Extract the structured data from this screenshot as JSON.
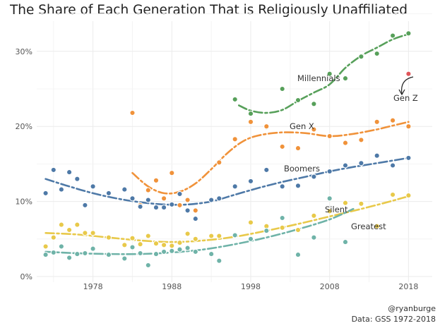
{
  "header": {
    "title": "The Share of Each Generation That is Religiously Unaffiliated"
  },
  "caption": {
    "handle": "@ryanburge",
    "source": "Data: GSS 1972-2018"
  },
  "chart_data": {
    "type": "scatter",
    "title": "The Share of Each Generation That is Religiously Unaffiliated",
    "xlabel": "",
    "ylabel": "",
    "xlim": [
      1971.5,
      2020
    ],
    "ylim": [
      0,
      32.5
    ],
    "x_ticks": [
      1978,
      1988,
      1998,
      2008,
      2018
    ],
    "x_tick_labels": [
      "1978",
      "1988",
      "1998",
      "2008",
      "2018"
    ],
    "y_ticks": [
      0,
      10,
      20,
      30
    ],
    "y_tick_labels": [
      "0%",
      "10%",
      "20%",
      "30%"
    ],
    "grid": true,
    "legend": "none (series labeled directly on chart)",
    "trend_lines": "dash-dot smoothed trend per generation",
    "annotation": {
      "text": "Gen Z",
      "arrow_to": [
        2018,
        27.0
      ]
    },
    "series": [
      {
        "name": "Millennials",
        "color": "#57a05a",
        "points": [
          [
            1996,
            23.6
          ],
          [
            1998,
            21.7
          ],
          [
            2000,
            19.9
          ],
          [
            2002,
            25.0
          ],
          [
            2004,
            23.5
          ],
          [
            2006,
            23.0
          ],
          [
            2008,
            27.0
          ],
          [
            2010,
            26.4
          ],
          [
            2012,
            29.3
          ],
          [
            2014,
            29.7
          ],
          [
            2016,
            32.1
          ],
          [
            2018,
            32.4
          ]
        ],
        "trend": [
          [
            1996.5,
            22.8
          ],
          [
            1998,
            22.1
          ],
          [
            2000,
            21.8
          ],
          [
            2002,
            22.2
          ],
          [
            2004,
            23.4
          ],
          [
            2006,
            24.5
          ],
          [
            2008,
            25.6
          ],
          [
            2010,
            27.8
          ],
          [
            2012,
            29.4
          ],
          [
            2014,
            30.5
          ],
          [
            2016,
            31.6
          ],
          [
            2018,
            32.3
          ]
        ]
      },
      {
        "name": "Gen X",
        "color": "#f0923a",
        "points": [
          [
            1983,
            21.8
          ],
          [
            1984,
            9.5
          ],
          [
            1985,
            11.5
          ],
          [
            1986,
            12.8
          ],
          [
            1987,
            10.4
          ],
          [
            1988,
            13.8
          ],
          [
            1989,
            9.5
          ],
          [
            1990,
            10.2
          ],
          [
            1991,
            8.8
          ],
          [
            1993,
            10.3
          ],
          [
            1994,
            15.2
          ],
          [
            1996,
            18.3
          ],
          [
            1998,
            20.6
          ],
          [
            2000,
            20.0
          ],
          [
            2002,
            17.3
          ],
          [
            2004,
            17.1
          ],
          [
            2006,
            19.6
          ],
          [
            2008,
            18.7
          ],
          [
            2010,
            17.8
          ],
          [
            2012,
            18.2
          ],
          [
            2014,
            20.6
          ],
          [
            2016,
            20.8
          ],
          [
            2018,
            20.0
          ]
        ],
        "trend": [
          [
            1983,
            13.8
          ],
          [
            1985,
            12.0
          ],
          [
            1987,
            11.1
          ],
          [
            1989,
            11.3
          ],
          [
            1991,
            12.4
          ],
          [
            1993,
            14.3
          ],
          [
            1995,
            16.4
          ],
          [
            1997,
            18.0
          ],
          [
            1999,
            18.8
          ],
          [
            2002,
            19.2
          ],
          [
            2005,
            19.1
          ],
          [
            2008,
            18.7
          ],
          [
            2011,
            19.0
          ],
          [
            2014,
            19.6
          ],
          [
            2016,
            20.1
          ],
          [
            2018,
            20.6
          ]
        ]
      },
      {
        "name": "Boomers",
        "color": "#4e79a7",
        "points": [
          [
            1972,
            11.1
          ],
          [
            1973,
            14.2
          ],
          [
            1974,
            11.6
          ],
          [
            1975,
            13.9
          ],
          [
            1976,
            13.0
          ],
          [
            1977,
            9.5
          ],
          [
            1978,
            12.0
          ],
          [
            1980,
            11.1
          ],
          [
            1982,
            11.6
          ],
          [
            1983,
            10.4
          ],
          [
            1984,
            9.3
          ],
          [
            1985,
            10.2
          ],
          [
            1986,
            9.2
          ],
          [
            1987,
            9.2
          ],
          [
            1988,
            9.6
          ],
          [
            1989,
            11.0
          ],
          [
            1990,
            8.8
          ],
          [
            1991,
            7.7
          ],
          [
            1993,
            10.2
          ],
          [
            1994,
            10.4
          ],
          [
            1996,
            12.0
          ],
          [
            1998,
            12.7
          ],
          [
            2000,
            14.2
          ],
          [
            2002,
            12.0
          ],
          [
            2004,
            12.1
          ],
          [
            2006,
            13.3
          ],
          [
            2008,
            14.0
          ],
          [
            2010,
            14.8
          ],
          [
            2012,
            15.1
          ],
          [
            2014,
            16.1
          ],
          [
            2016,
            14.8
          ],
          [
            2018,
            15.8
          ]
        ],
        "trend": [
          [
            1972,
            13.0
          ],
          [
            1975,
            12.0
          ],
          [
            1978,
            11.1
          ],
          [
            1981,
            10.4
          ],
          [
            1984,
            9.9
          ],
          [
            1987,
            9.6
          ],
          [
            1990,
            9.6
          ],
          [
            1993,
            10.0
          ],
          [
            1996,
            10.9
          ],
          [
            1999,
            11.8
          ],
          [
            2002,
            12.6
          ],
          [
            2005,
            13.3
          ],
          [
            2008,
            14.0
          ],
          [
            2011,
            14.6
          ],
          [
            2014,
            15.1
          ],
          [
            2018,
            15.8
          ]
        ]
      },
      {
        "name": "Silent",
        "color": "#e8c94a",
        "points": [
          [
            1972,
            4.0
          ],
          [
            1973,
            5.2
          ],
          [
            1974,
            6.9
          ],
          [
            1975,
            6.2
          ],
          [
            1976,
            6.9
          ],
          [
            1977,
            5.8
          ],
          [
            1978,
            5.8
          ],
          [
            1980,
            5.2
          ],
          [
            1982,
            4.2
          ],
          [
            1983,
            5.1
          ],
          [
            1984,
            4.3
          ],
          [
            1985,
            5.4
          ],
          [
            1986,
            4.4
          ],
          [
            1987,
            4.2
          ],
          [
            1988,
            4.1
          ],
          [
            1989,
            4.5
          ],
          [
            1990,
            5.7
          ],
          [
            1991,
            5.0
          ],
          [
            1993,
            5.4
          ],
          [
            1994,
            5.4
          ],
          [
            1996,
            5.5
          ],
          [
            1998,
            7.2
          ],
          [
            2000,
            6.7
          ],
          [
            2002,
            6.5
          ],
          [
            2004,
            6.2
          ],
          [
            2006,
            8.1
          ],
          [
            2008,
            8.7
          ],
          [
            2010,
            9.8
          ],
          [
            2012,
            9.7
          ],
          [
            2014,
            6.7
          ],
          [
            2016,
            10.9
          ],
          [
            2018,
            10.8
          ]
        ],
        "trend": [
          [
            1972,
            5.8
          ],
          [
            1976,
            5.6
          ],
          [
            1980,
            5.2
          ],
          [
            1984,
            4.8
          ],
          [
            1988,
            4.6
          ],
          [
            1992,
            4.8
          ],
          [
            1996,
            5.3
          ],
          [
            2000,
            6.1
          ],
          [
            2004,
            7.0
          ],
          [
            2008,
            8.0
          ],
          [
            2012,
            9.0
          ],
          [
            2016,
            10.1
          ],
          [
            2018,
            10.7
          ]
        ]
      },
      {
        "name": "Greatest",
        "color": "#6fb3a8",
        "points": [
          [
            1972,
            2.9
          ],
          [
            1973,
            3.2
          ],
          [
            1974,
            4.0
          ],
          [
            1975,
            2.5
          ],
          [
            1976,
            3.0
          ],
          [
            1977,
            3.1
          ],
          [
            1978,
            3.7
          ],
          [
            1980,
            2.9
          ],
          [
            1982,
            2.4
          ],
          [
            1983,
            3.9
          ],
          [
            1984,
            3.1
          ],
          [
            1985,
            1.5
          ],
          [
            1986,
            3.0
          ],
          [
            1987,
            3.3
          ],
          [
            1988,
            3.4
          ],
          [
            1989,
            3.6
          ],
          [
            1990,
            3.8
          ],
          [
            1991,
            3.3
          ],
          [
            1993,
            3.0
          ],
          [
            1994,
            2.1
          ],
          [
            1996,
            5.5
          ],
          [
            1998,
            5.0
          ],
          [
            2000,
            6.1
          ],
          [
            2002,
            7.8
          ],
          [
            2004,
            2.9
          ],
          [
            2006,
            5.2
          ],
          [
            2008,
            10.4
          ],
          [
            2010,
            4.6
          ]
        ],
        "trend": [
          [
            1972,
            3.3
          ],
          [
            1976,
            3.1
          ],
          [
            1980,
            3.0
          ],
          [
            1984,
            3.0
          ],
          [
            1988,
            3.2
          ],
          [
            1992,
            3.6
          ],
          [
            1996,
            4.3
          ],
          [
            2000,
            5.2
          ],
          [
            2004,
            6.3
          ],
          [
            2008,
            7.6
          ],
          [
            2011,
            9.0
          ]
        ]
      },
      {
        "name": "Gen Z",
        "color": "#e0555a",
        "points": [
          [
            2018,
            27.0
          ]
        ],
        "trend": []
      }
    ]
  }
}
